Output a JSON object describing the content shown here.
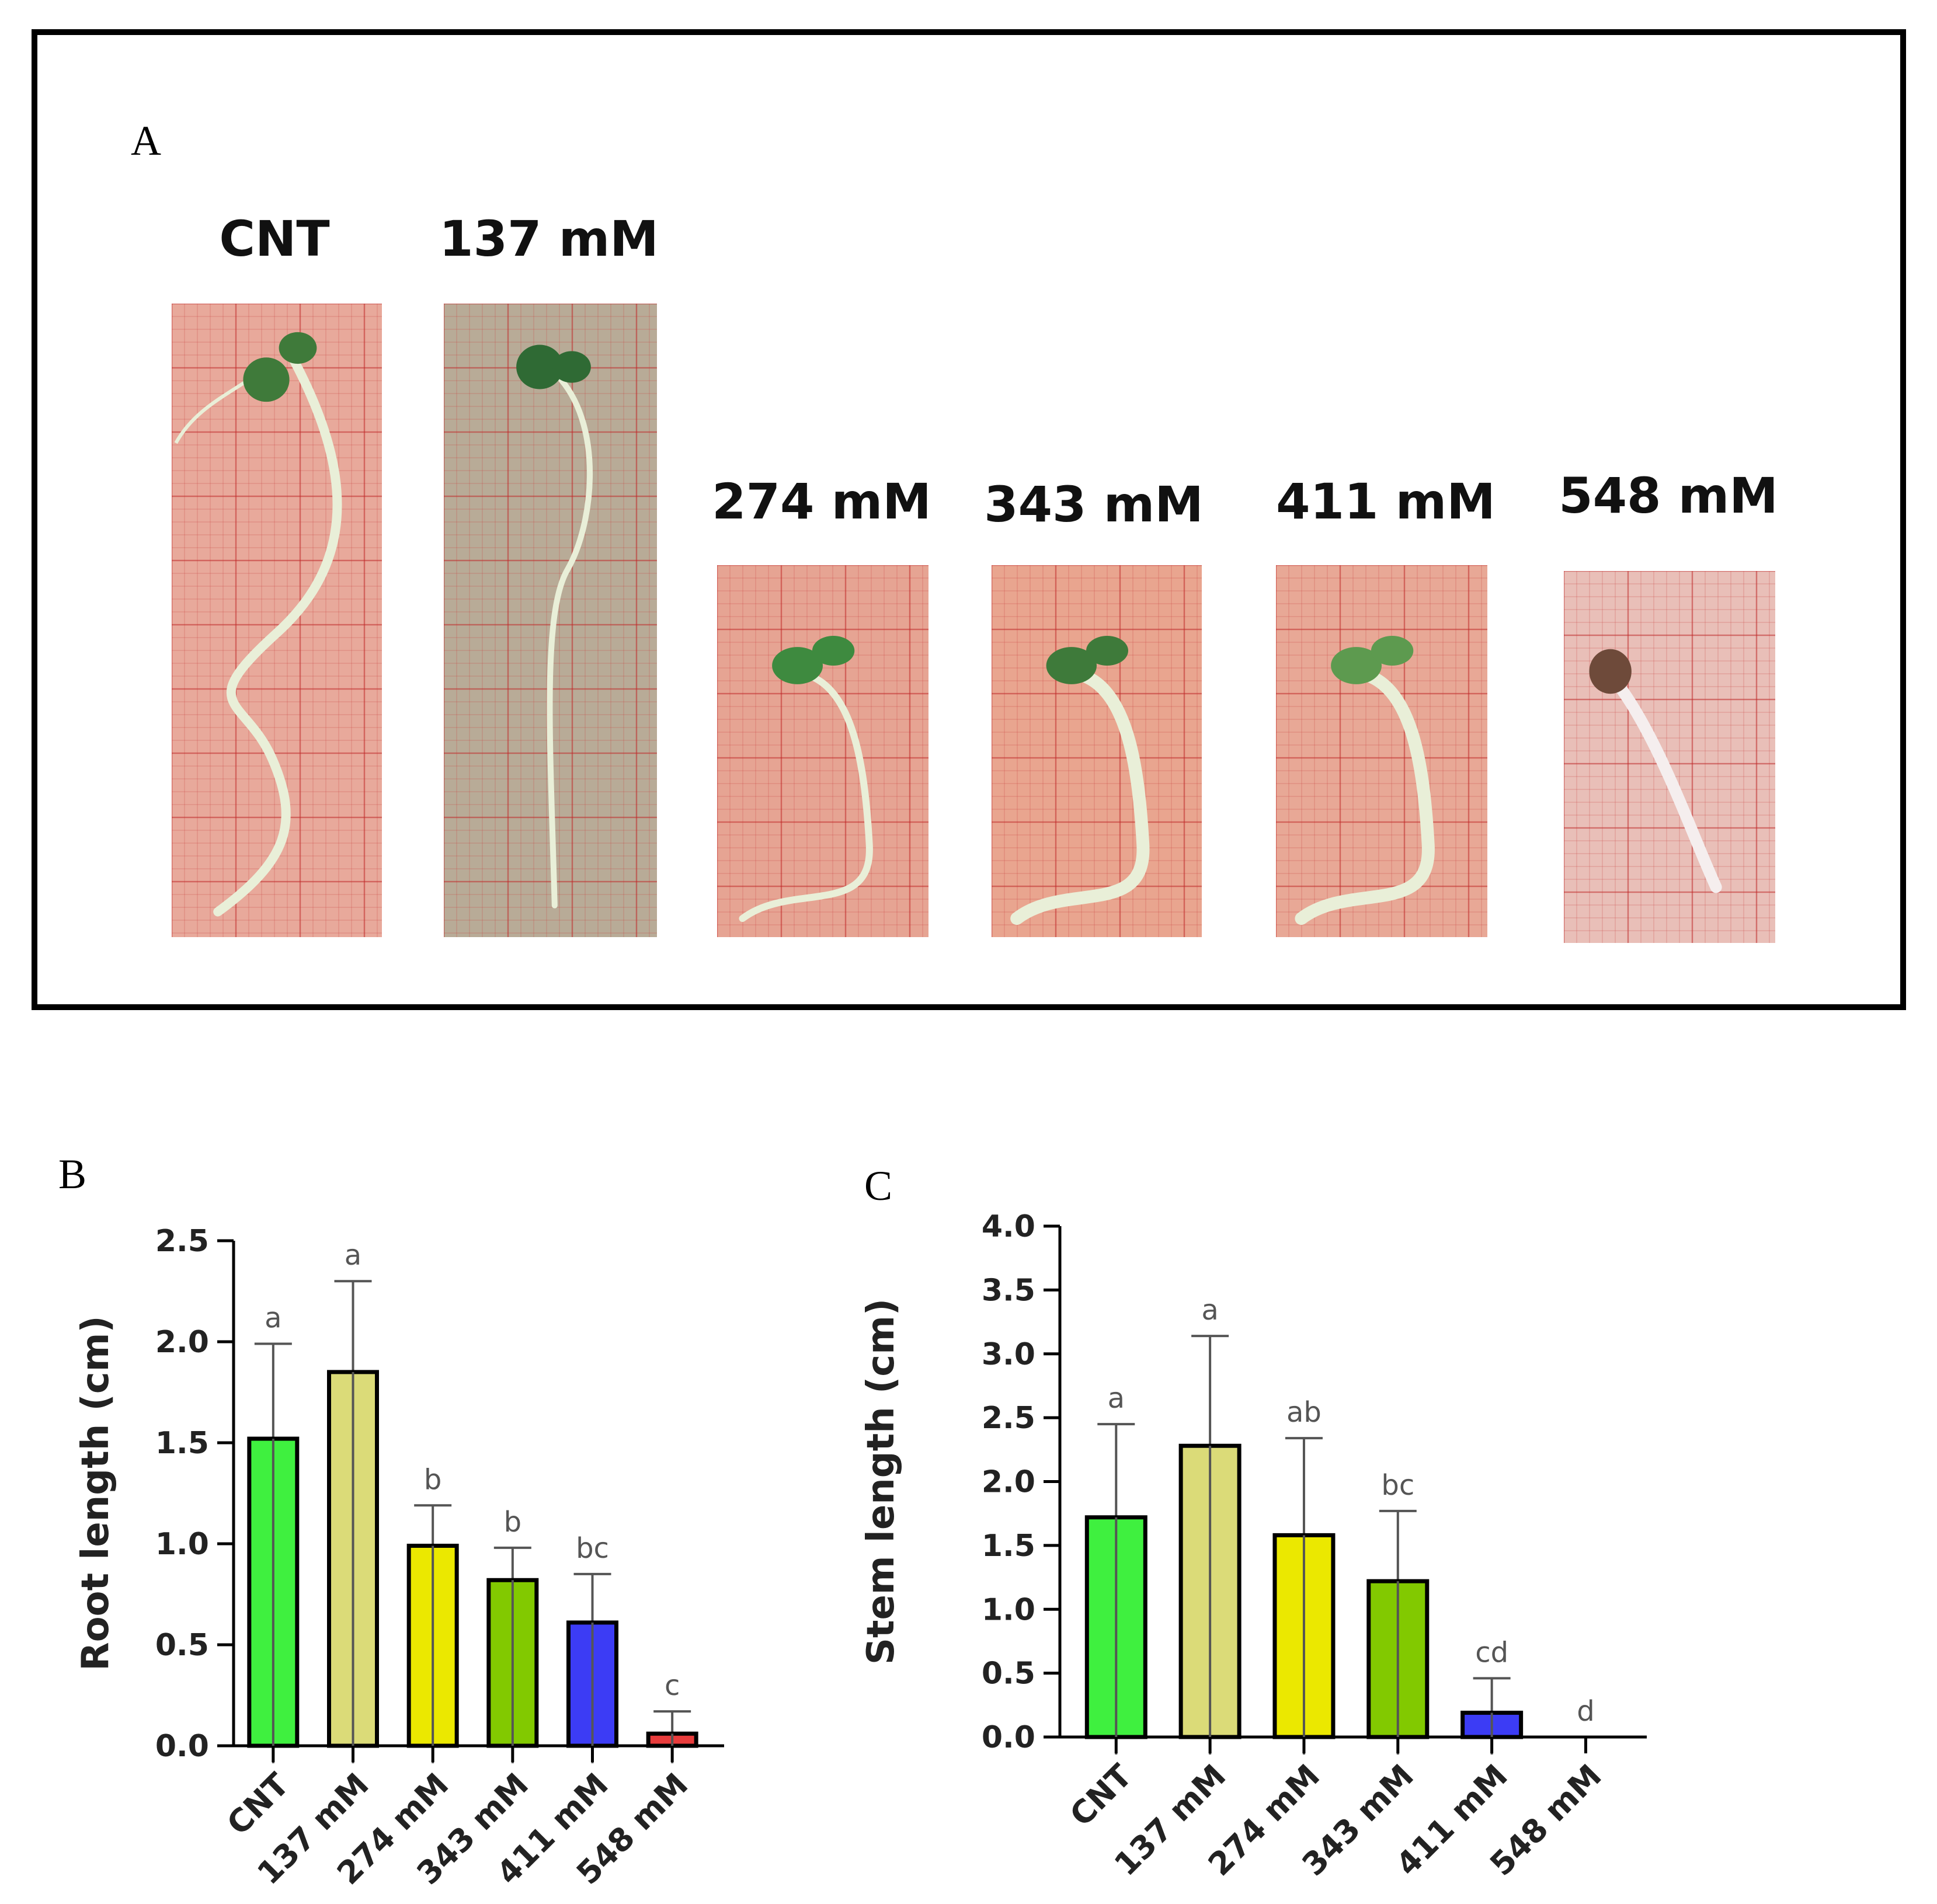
{
  "panel_a": {
    "letter": "A",
    "seedlings": [
      {
        "label": "CNT",
        "stage": "long",
        "paper": "#e8a99b",
        "cotyledon": "#3f7a3a"
      },
      {
        "label": "137 mM",
        "stage": "long",
        "paper": "#b8ab97",
        "cotyledon": "#2f6a34"
      },
      {
        "label": "274 mM",
        "stage": "short-thin",
        "paper": "#e6a493",
        "cotyledon": "#3e8a3f"
      },
      {
        "label": "343 mM",
        "stage": "short-thick",
        "paper": "#e9a58f",
        "cotyledon": "#3e7a3a"
      },
      {
        "label": "411 mM",
        "stage": "short-thick",
        "paper": "#e8a896",
        "cotyledon": "#5d9a4f"
      },
      {
        "label": "548 mM",
        "stage": "seed",
        "paper": "#e9bfb8",
        "cotyledon": "#6e4a3a"
      }
    ]
  },
  "chart_data": [
    {
      "letter": "B",
      "type": "bar",
      "ylabel": "Root length (cm)",
      "categories": [
        "CNT",
        "137 mM",
        "274 mM",
        "343 mM",
        "411 mM",
        "548 mM"
      ],
      "values": [
        1.52,
        1.85,
        0.99,
        0.82,
        0.61,
        0.06
      ],
      "errors": [
        0.47,
        0.45,
        0.2,
        0.16,
        0.24,
        0.11
      ],
      "letters": [
        "a",
        "a",
        "b",
        "b",
        "bc",
        "c"
      ],
      "colors": [
        "#3ff03f",
        "#dbdb78",
        "#ebe800",
        "#82c900",
        "#3c3cf5",
        "#e83c3c"
      ],
      "ylim": [
        0,
        2.5
      ],
      "yticks": [
        "0.0",
        "0.5",
        "1.0",
        "1.5",
        "2.0",
        "2.5"
      ]
    },
    {
      "letter": "C",
      "type": "bar",
      "ylabel": "Stem length (cm)",
      "categories": [
        "CNT",
        "137 mM",
        "274 mM",
        "343 mM",
        "411 mM",
        "548 mM"
      ],
      "values": [
        1.72,
        2.28,
        1.58,
        1.22,
        0.19,
        0.0
      ],
      "errors": [
        0.73,
        0.86,
        0.76,
        0.55,
        0.27,
        0.0
      ],
      "letters": [
        "a",
        "a",
        "ab",
        "bc",
        "cd",
        "d"
      ],
      "colors": [
        "#3ff03f",
        "#dbdb78",
        "#ebe800",
        "#82c900",
        "#3c3cf5",
        "#e83c3c"
      ],
      "ylim": [
        0,
        4.0
      ],
      "yticks": [
        "0.0",
        "0.5",
        "1.0",
        "1.5",
        "2.0",
        "2.5",
        "3.0",
        "3.5",
        "4.0"
      ]
    }
  ]
}
